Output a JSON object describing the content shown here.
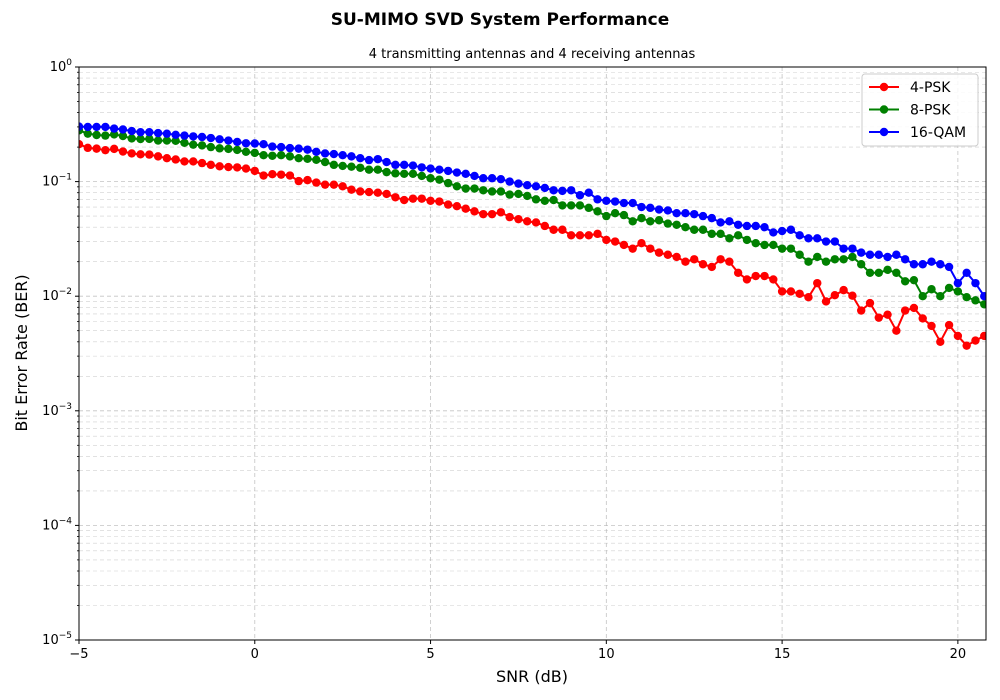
{
  "figure": {
    "suptitle": "SU-MIMO SVD System Performance"
  },
  "chart_data": {
    "type": "line",
    "title": "4 transmitting antennas and 4 receiving antennas",
    "xlabel": "SNR (dB)",
    "ylabel": "Bit Error Rate (BER)",
    "xlim": [
      -5,
      20.8
    ],
    "ylim": [
      1e-05,
      1
    ],
    "yscale": "log",
    "grid": true,
    "legend": "top-right",
    "x_ticks": [
      -5,
      0,
      5,
      10,
      15,
      20
    ],
    "x_tick_labels": [
      "−5",
      "0",
      "5",
      "10",
      "15",
      "20"
    ],
    "y_ticks": [
      1e-05,
      0.0001,
      0.001,
      0.01,
      0.1,
      1
    ],
    "y_tick_labels": [
      {
        "base": "10",
        "exp": "−5"
      },
      {
        "base": "10",
        "exp": "−4"
      },
      {
        "base": "10",
        "exp": "−3"
      },
      {
        "base": "10",
        "exp": "−2"
      },
      {
        "base": "10",
        "exp": "−1"
      },
      {
        "base": "10",
        "exp": "0"
      }
    ],
    "x": [
      -5.0,
      -4.75,
      -4.5,
      -4.25,
      -4.0,
      -3.75,
      -3.5,
      -3.25,
      -3.0,
      -2.75,
      -2.5,
      -2.25,
      -2.0,
      -1.75,
      -1.5,
      -1.25,
      -1.0,
      -0.75,
      -0.5,
      -0.25,
      0.0,
      0.25,
      0.5,
      0.75,
      1.0,
      1.25,
      1.5,
      1.75,
      2.0,
      2.25,
      2.5,
      2.75,
      3.0,
      3.25,
      3.5,
      3.75,
      4.0,
      4.25,
      4.5,
      4.75,
      5.0,
      5.25,
      5.5,
      5.75,
      6.0,
      6.25,
      6.5,
      6.75,
      7.0,
      7.25,
      7.5,
      7.75,
      8.0,
      8.25,
      8.5,
      8.75,
      9.0,
      9.25,
      9.5,
      9.75,
      10.0,
      10.25,
      10.5,
      10.75,
      11.0,
      11.25,
      11.5,
      11.75,
      12.0,
      12.25,
      12.5,
      12.75,
      13.0,
      13.25,
      13.5,
      13.75,
      14.0,
      14.25,
      14.5,
      14.75,
      15.0,
      15.25,
      15.5,
      15.75,
      16.0,
      16.25,
      16.5,
      16.75,
      17.0,
      17.25,
      17.5,
      17.75,
      18.0,
      18.25,
      18.5,
      18.75,
      19.0,
      19.25,
      19.5,
      19.75,
      20.0,
      20.25,
      20.5,
      20.75
    ],
    "series": [
      {
        "name": "4-PSK",
        "color": "#ff0000",
        "values": [
          0.212,
          0.197,
          0.194,
          0.188,
          0.193,
          0.183,
          0.176,
          0.173,
          0.172,
          0.166,
          0.16,
          0.156,
          0.15,
          0.15,
          0.145,
          0.14,
          0.136,
          0.134,
          0.133,
          0.13,
          0.124,
          0.113,
          0.116,
          0.115,
          0.113,
          0.101,
          0.103,
          0.098,
          0.094,
          0.094,
          0.091,
          0.085,
          0.082,
          0.081,
          0.08,
          0.078,
          0.073,
          0.069,
          0.071,
          0.071,
          0.068,
          0.067,
          0.063,
          0.061,
          0.058,
          0.055,
          0.052,
          0.052,
          0.054,
          0.049,
          0.047,
          0.045,
          0.044,
          0.041,
          0.038,
          0.038,
          0.034,
          0.034,
          0.034,
          0.035,
          0.031,
          0.03,
          0.028,
          0.026,
          0.029,
          0.026,
          0.024,
          0.023,
          0.022,
          0.02,
          0.021,
          0.019,
          0.018,
          0.021,
          0.02,
          0.016,
          0.014,
          0.015,
          0.015,
          0.014,
          0.011,
          0.011,
          0.0105,
          0.0098,
          0.013,
          0.009,
          0.0102,
          0.0113,
          0.0101,
          0.0075,
          0.0087,
          0.0065,
          0.0069,
          0.005,
          0.0075,
          0.0079,
          0.0064,
          0.0055,
          0.004,
          0.0056,
          0.0045,
          0.0037,
          0.0041,
          0.0045
        ]
      },
      {
        "name": "8-PSK",
        "color": "#008000",
        "values": [
          0.28,
          0.262,
          0.255,
          0.252,
          0.258,
          0.25,
          0.238,
          0.235,
          0.236,
          0.228,
          0.228,
          0.227,
          0.218,
          0.21,
          0.207,
          0.2,
          0.195,
          0.193,
          0.189,
          0.182,
          0.178,
          0.17,
          0.168,
          0.17,
          0.166,
          0.16,
          0.158,
          0.155,
          0.148,
          0.14,
          0.137,
          0.135,
          0.132,
          0.127,
          0.127,
          0.121,
          0.118,
          0.117,
          0.117,
          0.112,
          0.107,
          0.104,
          0.097,
          0.091,
          0.087,
          0.087,
          0.084,
          0.082,
          0.082,
          0.077,
          0.078,
          0.075,
          0.07,
          0.068,
          0.069,
          0.062,
          0.062,
          0.062,
          0.059,
          0.055,
          0.05,
          0.053,
          0.051,
          0.045,
          0.048,
          0.045,
          0.046,
          0.043,
          0.042,
          0.04,
          0.038,
          0.038,
          0.035,
          0.035,
          0.032,
          0.034,
          0.031,
          0.029,
          0.028,
          0.028,
          0.026,
          0.026,
          0.023,
          0.02,
          0.022,
          0.02,
          0.021,
          0.021,
          0.022,
          0.019,
          0.016,
          0.016,
          0.017,
          0.016,
          0.0135,
          0.0138,
          0.01,
          0.0115,
          0.01,
          0.0118,
          0.011,
          0.0098,
          0.0092,
          0.0085
        ]
      },
      {
        "name": "16-QAM",
        "color": "#0000ff",
        "values": [
          0.302,
          0.3,
          0.3,
          0.3,
          0.29,
          0.285,
          0.276,
          0.27,
          0.27,
          0.265,
          0.262,
          0.256,
          0.252,
          0.248,
          0.245,
          0.24,
          0.234,
          0.228,
          0.222,
          0.216,
          0.215,
          0.212,
          0.202,
          0.2,
          0.196,
          0.194,
          0.19,
          0.182,
          0.176,
          0.174,
          0.17,
          0.166,
          0.16,
          0.154,
          0.157,
          0.148,
          0.14,
          0.14,
          0.138,
          0.133,
          0.13,
          0.127,
          0.124,
          0.12,
          0.117,
          0.112,
          0.107,
          0.107,
          0.105,
          0.1,
          0.096,
          0.093,
          0.091,
          0.088,
          0.084,
          0.083,
          0.084,
          0.076,
          0.08,
          0.07,
          0.068,
          0.067,
          0.065,
          0.065,
          0.06,
          0.059,
          0.057,
          0.056,
          0.053,
          0.053,
          0.052,
          0.05,
          0.048,
          0.044,
          0.045,
          0.042,
          0.041,
          0.041,
          0.04,
          0.036,
          0.037,
          0.038,
          0.034,
          0.032,
          0.032,
          0.03,
          0.03,
          0.026,
          0.026,
          0.024,
          0.023,
          0.023,
          0.022,
          0.023,
          0.021,
          0.019,
          0.019,
          0.02,
          0.019,
          0.018,
          0.013,
          0.016,
          0.013,
          0.01
        ]
      }
    ]
  }
}
